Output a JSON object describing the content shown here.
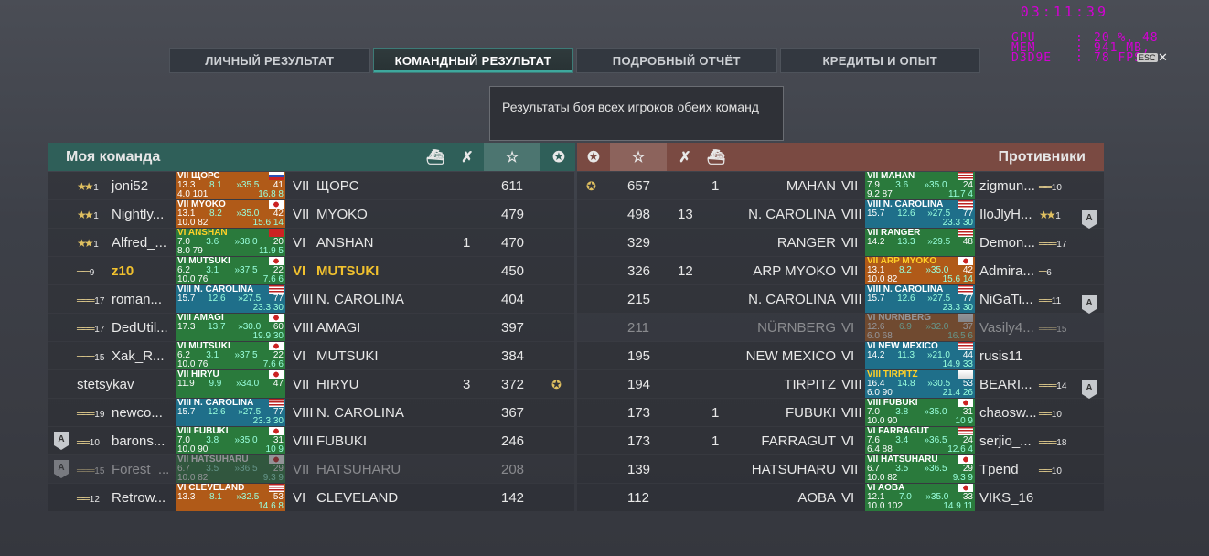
{
  "osd": {
    "time": "03:11:39",
    "gpu_label": "GPU",
    "gpu_val": "20 %, 48",
    "mem_label": "MEM",
    "mem_val": "941 MB,",
    "d3d_label": "D3D9E",
    "d3d_val": "78 FPS",
    "esc": "ESC"
  },
  "tabs": [
    "ЛИЧНЫЙ РЕЗУЛЬТАТ",
    "КОМАНДНЫЙ РЕЗУЛЬТАТ",
    "ПОДРОБНЫЙ ОТЧЁТ",
    "КРЕДИТЫ И ОПЫТ"
  ],
  "tooltip": "Результаты боя всех игроков обеих команд",
  "my_team": {
    "title": "Моя команда",
    "players": [
      {
        "name": "joni52",
        "rank": "1",
        "tier": "VII",
        "ship": "ЩОРС",
        "kills": "",
        "planes": "",
        "score": "611",
        "cap": "",
        "card": {
          "head": "VII ЩОРС",
          "a": "13.3",
          "b": "8.1",
          "c": "35.5",
          "d": "41",
          "e": "4.0",
          "f": "101",
          "g": "16.8",
          "h": "8",
          "bg": "#b05a18",
          "flag": "ru"
        }
      },
      {
        "name": "Nightly...",
        "rank": "1",
        "tier": "VII",
        "ship": "MYOKO",
        "kills": "",
        "planes": "",
        "score": "479",
        "cap": "",
        "card": {
          "head": "VII MYOKO",
          "a": "13.1",
          "b": "8.2",
          "c": "35.0",
          "d": "42",
          "e": "10.0",
          "f": "82",
          "g": "15.6",
          "h": "14",
          "bg": "#b05a18",
          "flag": "jp"
        }
      },
      {
        "name": "Alfred_...",
        "rank": "1",
        "tier": "VI",
        "ship": "ANSHAN",
        "kills": "1",
        "planes": "",
        "score": "470",
        "cap": "",
        "card": {
          "head": "VI ANSHAN",
          "a": "7.0",
          "b": "3.6",
          "c": "38.0",
          "d": "20",
          "e": "8.0",
          "f": "79",
          "g": "11.9",
          "h": "5",
          "bg": "#2a7a3c",
          "flag": "cn",
          "gold": true
        }
      },
      {
        "name": "z10",
        "rank": "9",
        "tier": "VI",
        "ship": "MUTSUKI",
        "kills": "",
        "planes": "",
        "score": "450",
        "cap": "",
        "self": true,
        "card": {
          "head": "VI MUTSUKI",
          "a": "6.2",
          "b": "3.1",
          "c": "37.5",
          "d": "22",
          "e": "10.0",
          "f": "76",
          "g": "7.6",
          "h": "6",
          "bg": "#2a7a3c",
          "flag": "jp"
        }
      },
      {
        "name": "roman...",
        "rank": "17",
        "tier": "VIII",
        "ship": "N. CAROLINA",
        "kills": "",
        "planes": "",
        "score": "404",
        "cap": "",
        "card": {
          "head": "VIII N. CAROLINA",
          "a": "15.7",
          "b": "12.6",
          "c": "27.5",
          "d": "77",
          "e": "",
          "f": "",
          "g": "23.3",
          "h": "30",
          "bg": "#1f6f8a",
          "flag": "us"
        }
      },
      {
        "name": "DedUtil...",
        "rank": "17",
        "tier": "VIII",
        "ship": "AMAGI",
        "kills": "",
        "planes": "",
        "score": "397",
        "cap": "",
        "card": {
          "head": "VIII AMAGI",
          "a": "17.3",
          "b": "13.7",
          "c": "30.0",
          "d": "60",
          "e": "",
          "f": "",
          "g": "19.9",
          "h": "30",
          "bg": "#2a7a3c",
          "flag": "jp"
        }
      },
      {
        "name": "Xak_R...",
        "rank": "15",
        "tier": "VI",
        "ship": "MUTSUKI",
        "kills": "",
        "planes": "",
        "score": "384",
        "cap": "",
        "card": {
          "head": "VI MUTSUKI",
          "a": "6.2",
          "b": "3.1",
          "c": "37.5",
          "d": "22",
          "e": "10.0",
          "f": "76",
          "g": "7.6",
          "h": "6",
          "bg": "#2a7a3c",
          "flag": "jp"
        }
      },
      {
        "name": "stetsykav",
        "rank": "",
        "tier": "VII",
        "ship": "HIRYU",
        "kills": "3",
        "planes": "",
        "score": "372",
        "cap": "✪",
        "card": {
          "head": "VII HIRYU",
          "a": "11.9",
          "b": "9.9",
          "c": "34.0",
          "d": "47",
          "e": "",
          "f": "",
          "g": "",
          "h": "",
          "bg": "#2a7a3c",
          "flag": "jp"
        }
      },
      {
        "name": "newco...",
        "rank": "19",
        "tier": "VIII",
        "ship": "N. CAROLINA",
        "kills": "",
        "planes": "",
        "score": "367",
        "cap": "",
        "card": {
          "head": "VIII N. CAROLINA",
          "a": "15.7",
          "b": "12.6",
          "c": "27.5",
          "d": "77",
          "e": "",
          "f": "",
          "g": "23.3",
          "h": "30",
          "bg": "#1f6f8a",
          "flag": "us"
        }
      },
      {
        "name": "barons...",
        "rank": "10",
        "tier": "VIII",
        "ship": "FUBUKI",
        "kills": "",
        "planes": "",
        "score": "246",
        "cap": "",
        "badge": "A",
        "card": {
          "head": "VIII FUBUKI",
          "a": "7.0",
          "b": "3.8",
          "c": "35.0",
          "d": "31",
          "e": "10.0",
          "f": "90",
          "g": "10",
          "h": "9",
          "bg": "#2a7a3c",
          "flag": "jp"
        }
      },
      {
        "name": "Forest_...",
        "rank": "15",
        "tier": "VII",
        "ship": "HATSUHARU",
        "kills": "",
        "planes": "",
        "score": "208",
        "cap": "",
        "badge": "A",
        "dead": true,
        "card": {
          "head": "VII HATSUHARU",
          "a": "6.7",
          "b": "3.5",
          "c": "36.5",
          "d": "29",
          "e": "10.0",
          "f": "82",
          "g": "9.3",
          "h": "9",
          "bg": "#2a7a3c",
          "flag": "jp"
        }
      },
      {
        "name": "Retrow...",
        "rank": "12",
        "tier": "VI",
        "ship": "CLEVELAND",
        "kills": "",
        "planes": "",
        "score": "142",
        "cap": "",
        "card": {
          "head": "VI CLEVELAND",
          "a": "13.3",
          "b": "8.1",
          "c": "32.5",
          "d": "53",
          "e": "",
          "f": "",
          "g": "14.6",
          "h": "8",
          "bg": "#b05a18",
          "flag": "us"
        }
      }
    ]
  },
  "enemy_team": {
    "title": "Противники",
    "players": [
      {
        "name": "zigmun...",
        "rank": "10",
        "tier": "VII",
        "ship": "MAHAN",
        "kills": "",
        "planes": "1",
        "score": "657",
        "cap": "✪",
        "card": {
          "head": "VII MAHAN",
          "a": "7.9",
          "b": "3.6",
          "c": "35.0",
          "d": "24",
          "e": "9.2",
          "f": "87",
          "g": "11.7",
          "h": "4",
          "bg": "#2a7a3c",
          "flag": "us"
        }
      },
      {
        "name": "IloJlyH...",
        "rank": "1",
        "tier": "VIII",
        "ship": "N. CAROLINA",
        "kills": "13",
        "planes": "",
        "score": "498",
        "cap": "",
        "badge": "A",
        "card": {
          "head": "VIII N. CAROLINA",
          "a": "15.7",
          "b": "12.6",
          "c": "27.5",
          "d": "77",
          "e": "",
          "f": "",
          "g": "23.3",
          "h": "30",
          "bg": "#1f6f8a",
          "flag": "us"
        }
      },
      {
        "name": "Demon...",
        "rank": "17",
        "tier": "VII",
        "ship": "RANGER",
        "kills": "",
        "planes": "",
        "score": "329",
        "cap": "",
        "card": {
          "head": "VII RANGER",
          "a": "14.2",
          "b": "13.3",
          "c": "29.5",
          "d": "48",
          "e": "",
          "f": "",
          "g": "",
          "h": "",
          "bg": "#2a7a3c",
          "flag": "us"
        }
      },
      {
        "name": "Admira...",
        "rank": "6",
        "tier": "VII",
        "ship": "ARP MYOKO",
        "kills": "12",
        "planes": "",
        "score": "326",
        "cap": "",
        "card": {
          "head": "VII ARP MYOKO",
          "a": "13.1",
          "b": "8.2",
          "c": "35.0",
          "d": "42",
          "e": "10.0",
          "f": "82",
          "g": "15.6",
          "h": "14",
          "bg": "#b05a18",
          "flag": "jp",
          "gold": true
        }
      },
      {
        "name": "NiGaTi...",
        "rank": "11",
        "tier": "VIII",
        "ship": "N. CAROLINA",
        "kills": "",
        "planes": "",
        "score": "215",
        "cap": "",
        "badge": "A",
        "card": {
          "head": "VIII N. CAROLINA",
          "a": "15.7",
          "b": "12.6",
          "c": "27.5",
          "d": "77",
          "e": "",
          "f": "",
          "g": "23.3",
          "h": "30",
          "bg": "#1f6f8a",
          "flag": "us"
        }
      },
      {
        "name": "Vasily4...",
        "rank": "15",
        "tier": "VI",
        "ship": "NÜRNBERG",
        "kills": "",
        "planes": "",
        "score": "211",
        "cap": "",
        "dead": true,
        "card": {
          "head": "VI NÜRNBERG",
          "a": "12.6",
          "b": "6.9",
          "c": "32.0",
          "d": "37",
          "e": "6.0",
          "f": "68",
          "g": "16.5",
          "h": "6",
          "bg": "#b05a18",
          "flag": "de"
        }
      },
      {
        "name": "rusis11",
        "rank": "",
        "tier": "VI",
        "ship": "NEW MEXICO",
        "kills": "",
        "planes": "",
        "score": "195",
        "cap": "",
        "card": {
          "head": "VI NEW MEXICO",
          "a": "14.2",
          "b": "11.3",
          "c": "21.0",
          "d": "44",
          "e": "",
          "f": "",
          "g": "14.9",
          "h": "33",
          "bg": "#1f6f8a",
          "flag": "us"
        }
      },
      {
        "name": "BEARI...",
        "rank": "14",
        "tier": "VIII",
        "ship": "TIRPITZ",
        "kills": "",
        "planes": "",
        "score": "194",
        "cap": "",
        "badge": "A",
        "card": {
          "head": "VIII TIRPITZ",
          "a": "16.4",
          "b": "14.8",
          "c": "30.5",
          "d": "53",
          "e": "6.0",
          "f": "90",
          "g": "21.4",
          "h": "26",
          "bg": "#1f6f8a",
          "flag": "de",
          "gold": true
        }
      },
      {
        "name": "chaosw...",
        "rank": "10",
        "tier": "VIII",
        "ship": "FUBUKI",
        "kills": "",
        "planes": "1",
        "score": "173",
        "cap": "",
        "card": {
          "head": "VIII FUBUKI",
          "a": "7.0",
          "b": "3.8",
          "c": "35.0",
          "d": "31",
          "e": "10.0",
          "f": "90",
          "g": "10",
          "h": "9",
          "bg": "#2a7a3c",
          "flag": "jp"
        }
      },
      {
        "name": "serjio_...",
        "rank": "18",
        "tier": "VI",
        "ship": "FARRAGUT",
        "kills": "",
        "planes": "1",
        "score": "173",
        "cap": "",
        "card": {
          "head": "VI FARRAGUT",
          "a": "7.6",
          "b": "3.4",
          "c": "36.5",
          "d": "24",
          "e": "6.4",
          "f": "88",
          "g": "12.6",
          "h": "4",
          "bg": "#2a7a3c",
          "flag": "us"
        }
      },
      {
        "name": "Tpend",
        "rank": "10",
        "tier": "VII",
        "ship": "HATSUHARU",
        "kills": "",
        "planes": "",
        "score": "139",
        "cap": "",
        "card": {
          "head": "VII HATSUHARU",
          "a": "6.7",
          "b": "3.5",
          "c": "36.5",
          "d": "29",
          "e": "10.0",
          "f": "82",
          "g": "9.3",
          "h": "9",
          "bg": "#2a7a3c",
          "flag": "jp"
        }
      },
      {
        "name": "VIKS_16",
        "rank": "",
        "tier": "VI",
        "ship": "AOBA",
        "kills": "",
        "planes": "",
        "score": "112",
        "cap": "",
        "card": {
          "head": "VI AOBA",
          "a": "12.1",
          "b": "7.0",
          "c": "35.0",
          "d": "33",
          "e": "10.0",
          "f": "102",
          "g": "14.9",
          "h": "11",
          "bg": "#2a7a3c",
          "flag": "jp"
        }
      }
    ]
  }
}
